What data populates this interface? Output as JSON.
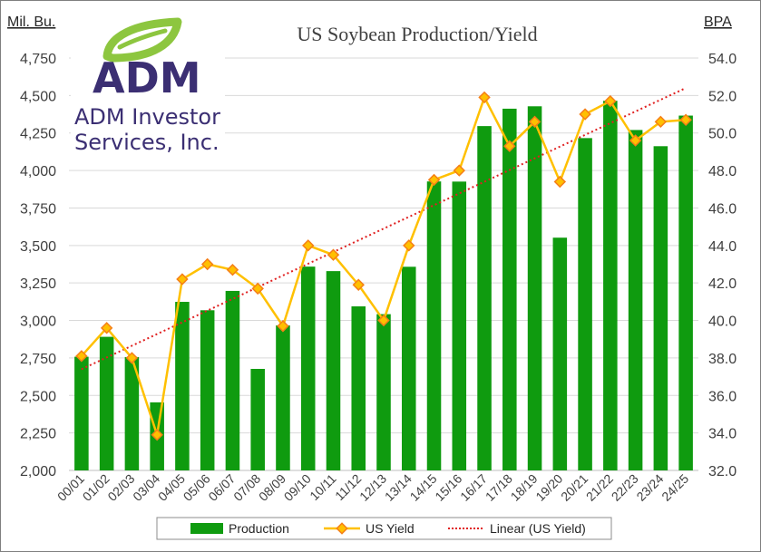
{
  "logo": {
    "wordmark": "ADM",
    "registered": "®",
    "company_line1": "ADM Investor",
    "company_line2": "Services, Inc.",
    "leaf_color": "#8dc63f",
    "text_color": "#3b2f73"
  },
  "chart_data": {
    "type": "bar",
    "title": "US Soybean Production/Yield",
    "left_axis_unit": "Mil. Bu.",
    "right_axis_unit": "BPA",
    "categories": [
      "00/01",
      "01/02",
      "02/03",
      "03/04",
      "04/05",
      "05/06",
      "06/07",
      "07/08",
      "08/09",
      "09/10",
      "10/11",
      "11/12",
      "12/13",
      "13/14",
      "14/15",
      "15/16",
      "16/17",
      "17/18",
      "18/19",
      "19/20",
      "20/21",
      "21/22",
      "22/23",
      "23/24",
      "24/25"
    ],
    "left_ylim": [
      2000,
      4750
    ],
    "left_ticks": [
      "2,000",
      "2,250",
      "2,500",
      "2,750",
      "3,000",
      "3,250",
      "3,500",
      "3,750",
      "4,000",
      "4,250",
      "4,500",
      "4,750"
    ],
    "right_ylim": [
      32.0,
      54.0
    ],
    "right_ticks": [
      "32.0",
      "34.0",
      "36.0",
      "38.0",
      "40.0",
      "42.0",
      "44.0",
      "46.0",
      "48.0",
      "50.0",
      "52.0",
      "54.0"
    ],
    "grid": true,
    "legend_position": "bottom",
    "series": [
      {
        "name": "Production",
        "kind": "bar",
        "axis": "left",
        "color": "#0f9b0f",
        "values": [
          2758,
          2891,
          2756,
          2454,
          3124,
          3068,
          3197,
          2677,
          2967,
          3359,
          3329,
          3094,
          3042,
          3358,
          3927,
          3926,
          4296,
          4412,
          4428,
          3552,
          4216,
          4465,
          4270,
          4162,
          4366
        ]
      },
      {
        "name": "US Yield",
        "kind": "line",
        "axis": "right",
        "color": "#ffc000",
        "marker_color": "#f57f17",
        "values": [
          38.1,
          39.6,
          38.0,
          33.9,
          42.2,
          43.0,
          42.7,
          41.7,
          39.7,
          44.0,
          43.5,
          41.9,
          40.0,
          44.0,
          47.5,
          48.0,
          51.9,
          49.3,
          50.6,
          47.4,
          51.0,
          51.7,
          49.6,
          50.6,
          50.7
        ]
      },
      {
        "name": "Linear (US Yield)",
        "kind": "trendline",
        "axis": "right",
        "color": "#e02020",
        "start": 37.4,
        "end": 52.4
      }
    ]
  }
}
